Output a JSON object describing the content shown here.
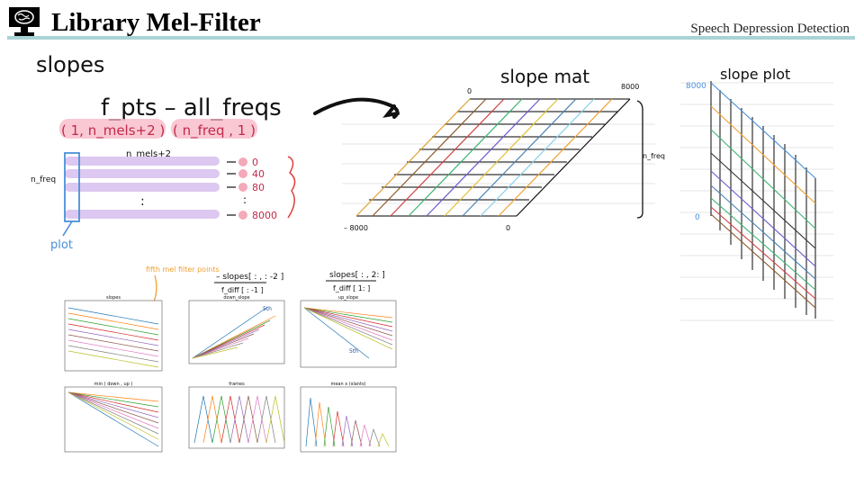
{
  "header": {
    "title": "Library Mel-Filter",
    "subtitle": "Speech Depression Detection",
    "rule_color": "#a9d3d6"
  },
  "notes": {
    "heading": "slopes",
    "formula": "f_pts  –  all_freqs",
    "shape_left": "( 1, n_mels+2 )",
    "shape_right": "( n_freq , 1 )",
    "cols_label": "n_mels+2",
    "rows_label": "n_freq",
    "plot_label": "plot",
    "row_values": [
      "0",
      "40",
      "80",
      "8000"
    ],
    "ellipsis": ":",
    "mat_title": "slope mat",
    "mat_top_left": "0",
    "mat_top_right": "8000",
    "mat_bottom_left": "– 8000",
    "mat_bottom_right": "0",
    "mat_side_label": "n_freq",
    "plot_title": "slope plot",
    "plot_top": "8000",
    "plot_bottom": "0",
    "fifth_note": "fifth mel filter points",
    "down_formula_num": "– slopes[ : , : -2 ]",
    "down_formula_den": "f_diff [ : -1 ]",
    "up_formula_num": "slopes[ : , 2: ]",
    "up_formula_den": "f_diff [ 1: ]",
    "five_mark": "5th",
    "five_mark2": "5th"
  },
  "small_charts": [
    {
      "title": "slopes"
    },
    {
      "title": "down_slope"
    },
    {
      "title": "up_slope"
    },
    {
      "title": "min ( down , up )"
    },
    {
      "title": "frames"
    },
    {
      "title": "mean x (slants)"
    }
  ],
  "colors": {
    "pink": "#f4a9b8",
    "lavender": "#dcc8f0",
    "blue_pen": "#4a90d9",
    "orange": "#f0a030",
    "red_pen": "#e04040"
  }
}
